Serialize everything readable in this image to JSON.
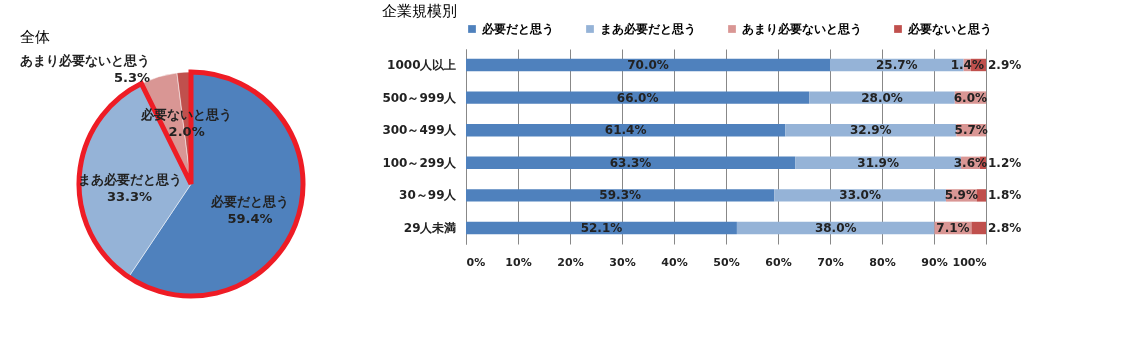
{
  "chart_data": [
    {
      "type": "pie",
      "title": "全体",
      "categories": [
        "必要だと思う",
        "まあ必要だと思う",
        "あまり必要ないと思う",
        "必要ないと思う"
      ],
      "values": [
        59.4,
        33.3,
        5.3,
        2.0
      ],
      "colors": [
        "#4f81bd",
        "#95b3d7",
        "#d99694",
        "#c0504d"
      ],
      "value_labels": [
        "59.4%",
        "33.3%",
        "5.3%",
        "2.0%"
      ],
      "legend": false
    },
    {
      "type": "bar",
      "title": "企業規模別",
      "orientation": "horizontal",
      "stacked": true,
      "categories": [
        "1000人以上",
        "500～999人",
        "300～499人",
        "100～299人",
        "30～99人",
        "29人未満"
      ],
      "series": [
        {
          "name": "必要だと思う",
          "color": "#4f81bd",
          "values": [
            70.0,
            66.0,
            61.4,
            63.3,
            59.3,
            52.1
          ],
          "value_labels": [
            "70.0%",
            "66.0%",
            "61.4%",
            "63.3%",
            "59.3%",
            "52.1%"
          ]
        },
        {
          "name": "まあ必要だと思う",
          "color": "#95b3d7",
          "values": [
            25.7,
            28.0,
            32.9,
            31.9,
            33.0,
            38.0
          ],
          "value_labels": [
            "25.7%",
            "28.0%",
            "32.9%",
            "31.9%",
            "33.0%",
            "38.0%"
          ]
        },
        {
          "name": "あまり必要ないと思う",
          "color": "#d99694",
          "values": [
            1.4,
            6.0,
            5.7,
            3.6,
            5.9,
            7.1
          ],
          "value_labels": [
            "1.4%",
            "6.0%",
            "5.7%",
            "3.6%",
            "5.9%",
            "7.1%"
          ]
        },
        {
          "name": "必要ないと思う",
          "color": "#c0504d",
          "values": [
            2.9,
            null,
            null,
            1.2,
            1.8,
            2.8
          ],
          "value_labels": [
            "2.9%",
            null,
            null,
            "1.2%",
            "1.8%",
            "2.8%"
          ]
        }
      ],
      "xlim": [
        0,
        100
      ],
      "xticks": [
        {
          "value": 0,
          "label": "0%"
        },
        {
          "value": 10,
          "label": "10%"
        },
        {
          "value": 20,
          "label": "20%"
        },
        {
          "value": 30,
          "label": "30%"
        },
        {
          "value": 40,
          "label": "40%"
        },
        {
          "value": 50,
          "label": "50%"
        },
        {
          "value": 60,
          "label": "60%"
        },
        {
          "value": 70,
          "label": "70%"
        },
        {
          "value": 80,
          "label": "80%"
        },
        {
          "value": 90,
          "label": "90%"
        },
        {
          "value": 100,
          "label": "100%"
        }
      ],
      "grid": "x",
      "legend": "top"
    }
  ]
}
